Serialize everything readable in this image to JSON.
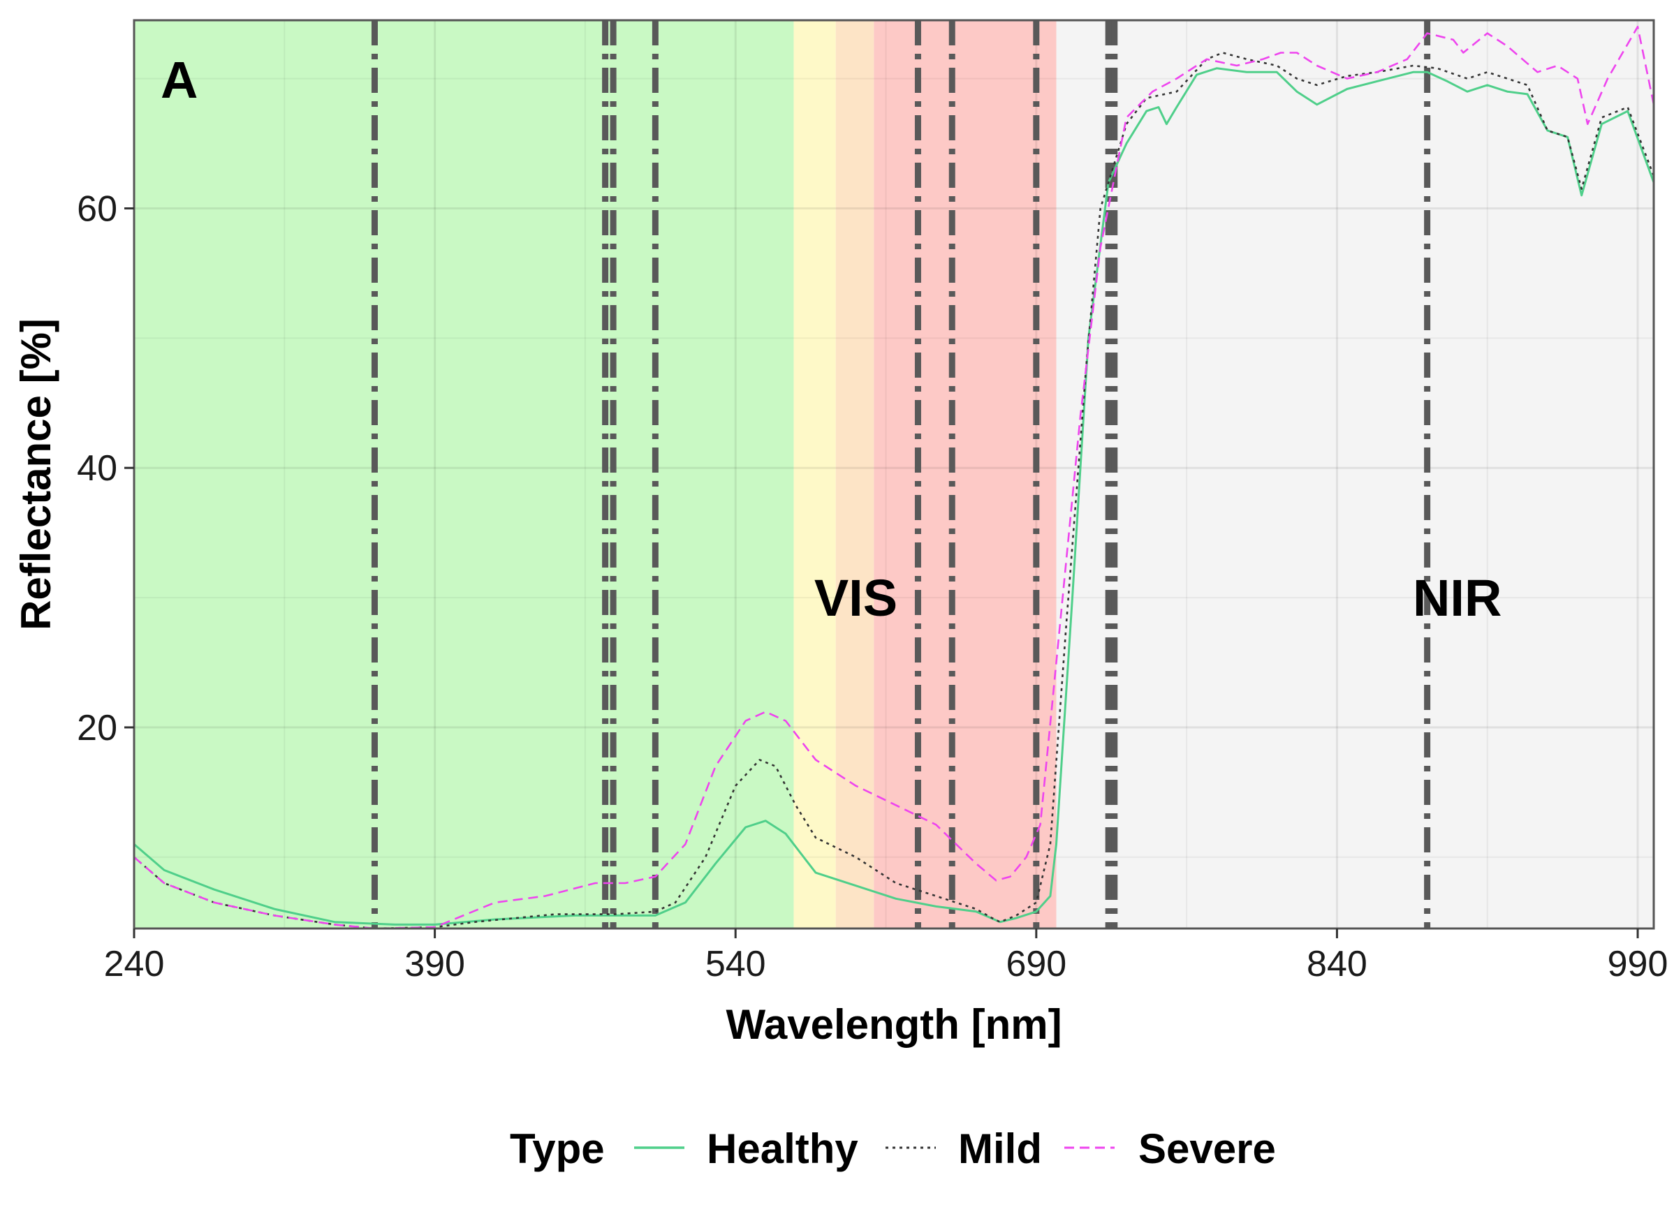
{
  "chart_data": {
    "type": "line",
    "panel_label": "A",
    "xlabel": "Wavelength [nm]",
    "ylabel": "Reflectance [%]",
    "xlim": [
      240,
      998
    ],
    "ylim": [
      4.5,
      74.5
    ],
    "x_ticks": [
      240,
      390,
      540,
      690,
      840,
      990
    ],
    "y_ticks": [
      20,
      40,
      60
    ],
    "grid": true,
    "legend": {
      "position": "bottom",
      "title": "Type",
      "entries": [
        {
          "name": "Healthy",
          "color": "#4fcf8a",
          "dash": "solid"
        },
        {
          "name": "Mild",
          "color": "#333333",
          "dash": "dotted"
        },
        {
          "name": "Severe",
          "color": "#ee44ee",
          "dash": "dashed"
        }
      ]
    },
    "bands": [
      {
        "from": 240,
        "to": 569,
        "color": "#c9f9c4"
      },
      {
        "from": 569,
        "to": 590,
        "color": "#fef9c8"
      },
      {
        "from": 590,
        "to": 609,
        "color": "#fde4c6"
      },
      {
        "from": 609,
        "to": 700,
        "color": "#fdc9c6"
      },
      {
        "from": 700,
        "to": 998,
        "color": "#f4f4f4"
      }
    ],
    "region_labels": [
      {
        "text": "VIS",
        "x": 600,
        "y": 30
      },
      {
        "text": "NIR",
        "x": 900,
        "y": 30
      }
    ],
    "vlines": [
      360,
      475,
      479,
      500,
      631,
      648,
      690,
      726,
      729,
      885
    ],
    "series": [
      {
        "name": "Healthy",
        "points": [
          [
            240,
            11
          ],
          [
            255,
            9
          ],
          [
            280,
            7.5
          ],
          [
            310,
            6
          ],
          [
            340,
            5
          ],
          [
            370,
            4.8
          ],
          [
            390,
            4.8
          ],
          [
            420,
            5.2
          ],
          [
            460,
            5.5
          ],
          [
            500,
            5.5
          ],
          [
            515,
            6.5
          ],
          [
            530,
            9.5
          ],
          [
            545,
            12.3
          ],
          [
            555,
            12.8
          ],
          [
            565,
            11.8
          ],
          [
            580,
            8.8
          ],
          [
            600,
            7.8
          ],
          [
            620,
            6.8
          ],
          [
            640,
            6.2
          ],
          [
            660,
            5.8
          ],
          [
            672,
            5
          ],
          [
            680,
            5.3
          ],
          [
            690,
            5.8
          ],
          [
            697,
            7
          ],
          [
            700,
            11
          ],
          [
            708,
            30
          ],
          [
            716,
            50
          ],
          [
            726,
            62
          ],
          [
            735,
            65
          ],
          [
            745,
            67.5
          ],
          [
            751,
            67.8
          ],
          [
            755,
            66.5
          ],
          [
            760,
            67.8
          ],
          [
            770,
            70.3
          ],
          [
            780,
            70.8
          ],
          [
            795,
            70.5
          ],
          [
            810,
            70.5
          ],
          [
            820,
            69
          ],
          [
            830,
            68
          ],
          [
            845,
            69.2
          ],
          [
            860,
            69.8
          ],
          [
            878,
            70.5
          ],
          [
            885,
            70.5
          ],
          [
            895,
            69.8
          ],
          [
            905,
            69
          ],
          [
            915,
            69.5
          ],
          [
            925,
            69
          ],
          [
            935,
            68.8
          ],
          [
            945,
            66
          ],
          [
            955,
            65.5
          ],
          [
            962,
            61
          ],
          [
            972,
            66.5
          ],
          [
            985,
            67.5
          ],
          [
            998,
            62
          ]
        ]
      },
      {
        "name": "Mild",
        "points": [
          [
            240,
            10
          ],
          [
            255,
            8
          ],
          [
            280,
            6.5
          ],
          [
            310,
            5.5
          ],
          [
            340,
            4.8
          ],
          [
            360,
            4.5
          ],
          [
            390,
            4.6
          ],
          [
            410,
            5
          ],
          [
            450,
            5.6
          ],
          [
            480,
            5.6
          ],
          [
            500,
            5.8
          ],
          [
            510,
            6.5
          ],
          [
            525,
            10
          ],
          [
            540,
            15.5
          ],
          [
            552,
            17.5
          ],
          [
            560,
            17
          ],
          [
            570,
            14
          ],
          [
            580,
            11.5
          ],
          [
            600,
            10
          ],
          [
            620,
            8
          ],
          [
            640,
            7
          ],
          [
            660,
            6
          ],
          [
            668,
            5.3
          ],
          [
            672,
            5
          ],
          [
            680,
            5.5
          ],
          [
            690,
            6.5
          ],
          [
            697,
            11
          ],
          [
            705,
            28
          ],
          [
            715,
            48
          ],
          [
            722,
            60
          ],
          [
            735,
            66.5
          ],
          [
            745,
            68.5
          ],
          [
            760,
            69
          ],
          [
            775,
            71.5
          ],
          [
            783,
            72
          ],
          [
            795,
            71.5
          ],
          [
            810,
            71
          ],
          [
            820,
            70
          ],
          [
            830,
            69.5
          ],
          [
            845,
            70.2
          ],
          [
            860,
            70.5
          ],
          [
            878,
            71
          ],
          [
            890,
            70.8
          ],
          [
            905,
            70
          ],
          [
            915,
            70.5
          ],
          [
            925,
            70
          ],
          [
            935,
            69.5
          ],
          [
            945,
            66
          ],
          [
            955,
            65.5
          ],
          [
            962,
            61.5
          ],
          [
            972,
            67
          ],
          [
            985,
            67.8
          ],
          [
            998,
            62.5
          ]
        ]
      },
      {
        "name": "Severe",
        "points": [
          [
            240,
            10
          ],
          [
            255,
            8
          ],
          [
            280,
            6.5
          ],
          [
            310,
            5.5
          ],
          [
            340,
            4.8
          ],
          [
            360,
            4.5
          ],
          [
            390,
            4.6
          ],
          [
            420,
            6.5
          ],
          [
            445,
            7
          ],
          [
            470,
            8
          ],
          [
            485,
            8
          ],
          [
            500,
            8.5
          ],
          [
            515,
            11
          ],
          [
            530,
            17
          ],
          [
            545,
            20.5
          ],
          [
            555,
            21.2
          ],
          [
            565,
            20.5
          ],
          [
            580,
            17.5
          ],
          [
            600,
            15.5
          ],
          [
            620,
            14
          ],
          [
            640,
            12.5
          ],
          [
            650,
            11
          ],
          [
            660,
            9.5
          ],
          [
            670,
            8.2
          ],
          [
            677,
            8.5
          ],
          [
            685,
            10
          ],
          [
            692,
            12.5
          ],
          [
            700,
            25
          ],
          [
            712,
            44
          ],
          [
            722,
            57
          ],
          [
            735,
            67
          ],
          [
            748,
            69
          ],
          [
            760,
            70
          ],
          [
            775,
            71.5
          ],
          [
            790,
            71
          ],
          [
            803,
            71.5
          ],
          [
            812,
            72
          ],
          [
            820,
            72
          ],
          [
            830,
            71
          ],
          [
            845,
            70
          ],
          [
            860,
            70.5
          ],
          [
            875,
            71.5
          ],
          [
            885,
            73.5
          ],
          [
            898,
            73
          ],
          [
            903,
            72
          ],
          [
            915,
            73.5
          ],
          [
            925,
            72.5
          ],
          [
            940,
            70.5
          ],
          [
            950,
            71
          ],
          [
            960,
            70
          ],
          [
            965,
            66.5
          ],
          [
            975,
            70
          ],
          [
            990,
            74
          ],
          [
            998,
            68
          ]
        ]
      }
    ]
  }
}
